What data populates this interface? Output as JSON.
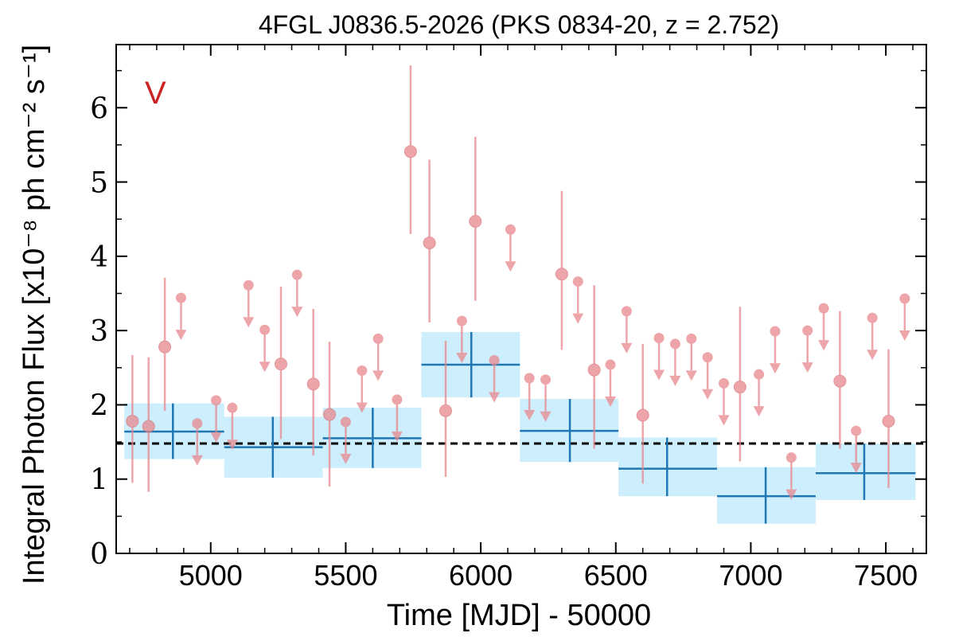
{
  "chart_data": {
    "type": "scatter",
    "title": "4FGL J0836.5-2026 (PKS 0834-20, z = 2.752)",
    "xlabel": "Time [MJD] - 50000",
    "ylabel": "Integral Photon Flux [x10⁻⁸ ph cm⁻² s⁻¹]",
    "panel_label": "V",
    "xlim": [
      4650,
      7650
    ],
    "ylim": [
      0,
      6.85
    ],
    "xticks": [
      5000,
      5500,
      6000,
      6500,
      7000,
      7500
    ],
    "yticks": [
      0,
      1,
      2,
      3,
      4,
      5,
      6
    ],
    "mean_flux": 1.48,
    "colors": {
      "detection": "#e8888e",
      "upper_limit": "#e8888e",
      "bin_fill": "#cdeefc",
      "bin_line": "#1f77b4",
      "mean_line": "#000000",
      "panel_label": "#cc2222"
    },
    "detections": [
      {
        "x": 4710,
        "y": 1.78,
        "lo": 0.95,
        "hi": 2.67
      },
      {
        "x": 4770,
        "y": 1.71,
        "lo": 0.83,
        "hi": 2.64
      },
      {
        "x": 4830,
        "y": 2.78,
        "lo": 1.92,
        "hi": 3.71
      },
      {
        "x": 5260,
        "y": 2.55,
        "lo": 1.54,
        "hi": 3.59
      },
      {
        "x": 5380,
        "y": 2.28,
        "lo": 1.32,
        "hi": 3.29
      },
      {
        "x": 5440,
        "y": 1.87,
        "lo": 0.9,
        "hi": 2.85
      },
      {
        "x": 5740,
        "y": 5.41,
        "lo": 4.3,
        "hi": 6.57
      },
      {
        "x": 5810,
        "y": 4.18,
        "lo": 3.11,
        "hi": 5.3
      },
      {
        "x": 5870,
        "y": 1.92,
        "lo": 1.03,
        "hi": 2.86
      },
      {
        "x": 5980,
        "y": 4.47,
        "lo": 3.4,
        "hi": 5.61
      },
      {
        "x": 6300,
        "y": 3.76,
        "lo": 2.74,
        "hi": 4.88
      },
      {
        "x": 6420,
        "y": 2.47,
        "lo": 1.41,
        "hi": 3.61
      },
      {
        "x": 6600,
        "y": 1.86,
        "lo": 0.94,
        "hi": 2.82
      },
      {
        "x": 6960,
        "y": 2.24,
        "lo": 1.24,
        "hi": 3.32
      },
      {
        "x": 7330,
        "y": 2.32,
        "lo": 1.41,
        "hi": 3.26
      },
      {
        "x": 7510,
        "y": 1.78,
        "lo": 0.88,
        "hi": 2.75
      }
    ],
    "upper_limits": [
      {
        "x": 4890,
        "y": 3.44
      },
      {
        "x": 4950,
        "y": 1.75
      },
      {
        "x": 5020,
        "y": 2.06
      },
      {
        "x": 5080,
        "y": 1.96
      },
      {
        "x": 5140,
        "y": 3.61
      },
      {
        "x": 5200,
        "y": 3.01
      },
      {
        "x": 5320,
        "y": 3.75
      },
      {
        "x": 5500,
        "y": 1.77
      },
      {
        "x": 5560,
        "y": 2.46
      },
      {
        "x": 5620,
        "y": 2.89
      },
      {
        "x": 5690,
        "y": 2.07
      },
      {
        "x": 5930,
        "y": 3.13
      },
      {
        "x": 6050,
        "y": 2.6
      },
      {
        "x": 6110,
        "y": 4.36
      },
      {
        "x": 6180,
        "y": 2.36
      },
      {
        "x": 6240,
        "y": 2.34
      },
      {
        "x": 6360,
        "y": 3.66
      },
      {
        "x": 6480,
        "y": 2.54
      },
      {
        "x": 6540,
        "y": 3.26
      },
      {
        "x": 6660,
        "y": 2.9
      },
      {
        "x": 6720,
        "y": 2.82
      },
      {
        "x": 6780,
        "y": 2.89
      },
      {
        "x": 6840,
        "y": 2.64
      },
      {
        "x": 6900,
        "y": 2.29
      },
      {
        "x": 7030,
        "y": 2.41
      },
      {
        "x": 7090,
        "y": 2.99
      },
      {
        "x": 7150,
        "y": 1.29
      },
      {
        "x": 7210,
        "y": 3.0
      },
      {
        "x": 7270,
        "y": 3.3
      },
      {
        "x": 7390,
        "y": 1.65
      },
      {
        "x": 7450,
        "y": 3.17
      },
      {
        "x": 7570,
        "y": 3.43
      }
    ],
    "bins": [
      {
        "x0": 4680,
        "x1": 5050,
        "xc": 4860,
        "y": 1.64,
        "lo": 1.27,
        "hi": 2.02
      },
      {
        "x0": 5050,
        "x1": 5415,
        "xc": 5230,
        "y": 1.43,
        "lo": 1.02,
        "hi": 1.84
      },
      {
        "x0": 5415,
        "x1": 5780,
        "xc": 5600,
        "y": 1.55,
        "lo": 1.15,
        "hi": 1.96
      },
      {
        "x0": 5780,
        "x1": 6145,
        "xc": 5965,
        "y": 2.54,
        "lo": 2.1,
        "hi": 2.98
      },
      {
        "x0": 6145,
        "x1": 6510,
        "xc": 6330,
        "y": 1.65,
        "lo": 1.23,
        "hi": 2.08
      },
      {
        "x0": 6510,
        "x1": 6875,
        "xc": 6690,
        "y": 1.14,
        "lo": 0.77,
        "hi": 1.56
      },
      {
        "x0": 6875,
        "x1": 7240,
        "xc": 7055,
        "y": 0.77,
        "lo": 0.4,
        "hi": 1.16
      },
      {
        "x0": 7240,
        "x1": 7610,
        "xc": 7420,
        "y": 1.08,
        "lo": 0.72,
        "hi": 1.48
      }
    ]
  }
}
